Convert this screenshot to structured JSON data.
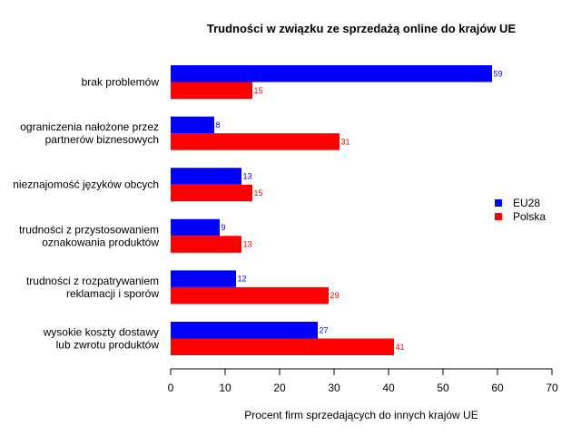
{
  "chart_data": {
    "type": "bar",
    "orientation": "horizontal",
    "title": "Trudności w związku ze sprzedażą online do krajów UE",
    "xlabel": "Procent firm sprzedających do innych krajów UE",
    "ylabel": "",
    "xlim": [
      0,
      70
    ],
    "x_ticks": [
      0,
      10,
      20,
      30,
      40,
      50,
      60,
      70
    ],
    "grid": false,
    "legend_position": "right",
    "categories": [
      [
        "brak problemów"
      ],
      [
        "ograniczenia nałożone przez",
        "partnerów biznesowych"
      ],
      [
        "nieznajomość języków obcych"
      ],
      [
        "trudności z przystosowaniem",
        "oznakowania produktów"
      ],
      [
        "trudności z rozpatrywaniem",
        "reklamacji i sporów"
      ],
      [
        "wysokie koszty dostawy",
        "lub zwrotu produktów"
      ]
    ],
    "series": [
      {
        "name": "EU28",
        "color": "#0000ff",
        "values": [
          59,
          8,
          13,
          9,
          12,
          27
        ]
      },
      {
        "name": "Polska",
        "color": "#ff0000",
        "values": [
          15,
          31,
          15,
          13,
          29,
          41
        ]
      }
    ]
  }
}
